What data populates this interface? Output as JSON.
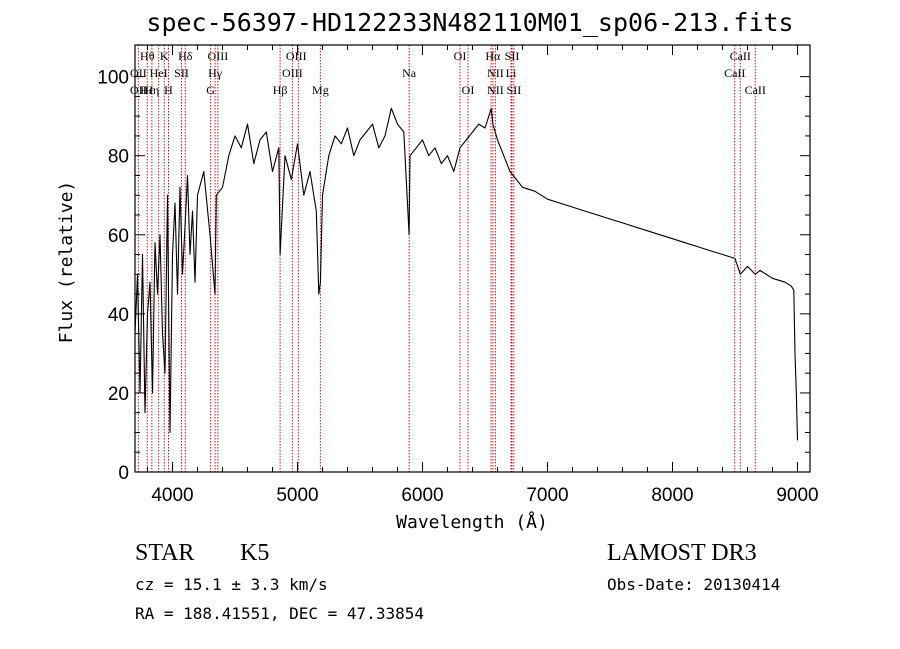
{
  "chart_data": {
    "type": "line",
    "title": "spec-56397-HD122233N482110M01_sp06-213.fits",
    "xlabel": "Wavelength (Å)",
    "ylabel": "Flux (relative)",
    "xlim": [
      3700,
      9100
    ],
    "ylim": [
      0,
      108
    ],
    "xticks": [
      4000,
      5000,
      6000,
      7000,
      8000,
      9000
    ],
    "yticks": [
      0,
      20,
      40,
      60,
      80,
      100
    ],
    "grid": false,
    "series": [
      {
        "x": [
          3700,
          3720,
          3740,
          3760,
          3780,
          3800,
          3820,
          3840,
          3860,
          3880,
          3900,
          3920,
          3940,
          3960,
          3980,
          4000,
          4020,
          4040,
          4060,
          4080,
          4100,
          4120,
          4140,
          4160,
          4180,
          4200,
          4250,
          4300,
          4340,
          4350,
          4400,
          4450,
          4500,
          4550,
          4600,
          4650,
          4700,
          4750,
          4800,
          4850,
          4861,
          4900,
          4950,
          5000,
          5050,
          5100,
          5150,
          5170,
          5183,
          5200,
          5250,
          5300,
          5350,
          5400,
          5450,
          5500,
          5550,
          5600,
          5650,
          5700,
          5750,
          5800,
          5850,
          5893,
          5900,
          5950,
          6000,
          6050,
          6100,
          6150,
          6200,
          6250,
          6300,
          6350,
          6400,
          6450,
          6500,
          6550,
          6563,
          6600,
          6650,
          6700,
          6750,
          6800,
          6900,
          7000,
          7100,
          7200,
          7300,
          7400,
          7500,
          7600,
          7700,
          7800,
          7900,
          8000,
          8100,
          8200,
          8300,
          8400,
          8500,
          8542,
          8600,
          8662,
          8700,
          8800,
          8900,
          8950,
          8970,
          8980,
          8990,
          9000
        ],
        "y": [
          35,
          50,
          20,
          55,
          15,
          40,
          48,
          20,
          58,
          45,
          60,
          35,
          25,
          70,
          10,
          55,
          68,
          45,
          72,
          50,
          62,
          75,
          55,
          66,
          48,
          70,
          76,
          60,
          45,
          70,
          72,
          80,
          85,
          82,
          88,
          78,
          84,
          86,
          76,
          82,
          55,
          80,
          74,
          83,
          70,
          76,
          66,
          45,
          48,
          70,
          80,
          85,
          83,
          87,
          80,
          84,
          86,
          88,
          82,
          85,
          92,
          88,
          86,
          60,
          80,
          82,
          84,
          80,
          82,
          78,
          80,
          76,
          82,
          84,
          86,
          88,
          87,
          92,
          88,
          84,
          80,
          76,
          74,
          72,
          71,
          69,
          68,
          67,
          66,
          65,
          64,
          63,
          62,
          61,
          60,
          59,
          58,
          57,
          56,
          55,
          54,
          50,
          52,
          50,
          51,
          49,
          48,
          47,
          46,
          30,
          20,
          8
        ]
      }
    ],
    "line_labels": [
      {
        "text": "Hθ",
        "x": 3798,
        "row": 1
      },
      {
        "text": "OII",
        "x": 3727,
        "row": 2
      },
      {
        "text": "OII",
        "x": 3727,
        "row": 3
      },
      {
        "text": "Hε",
        "x": 3797,
        "row": 3
      },
      {
        "text": "K",
        "x": 3934,
        "row": 1
      },
      {
        "text": "HeI",
        "x": 3889,
        "row": 2
      },
      {
        "text": "Hη",
        "x": 3835,
        "row": 3
      },
      {
        "text": "Hδ",
        "x": 4102,
        "row": 1
      },
      {
        "text": "SII",
        "x": 4072,
        "row": 2
      },
      {
        "text": "H",
        "x": 3968,
        "row": 3
      },
      {
        "text": "OIII",
        "x": 4363,
        "row": 1
      },
      {
        "text": "Hγ",
        "x": 4341,
        "row": 2
      },
      {
        "text": "G",
        "x": 4305,
        "row": 3
      },
      {
        "text": "Hβ",
        "x": 4861,
        "row": 3
      },
      {
        "text": "OIII",
        "x": 4990,
        "row": 1
      },
      {
        "text": "OIII",
        "x": 4959,
        "row": 2
      },
      {
        "text": "Mg",
        "x": 5183,
        "row": 3
      },
      {
        "text": "Na",
        "x": 5893,
        "row": 2
      },
      {
        "text": "OI",
        "x": 6300,
        "row": 1
      },
      {
        "text": "OI",
        "x": 6364,
        "row": 3
      },
      {
        "text": "Hα",
        "x": 6563,
        "row": 1
      },
      {
        "text": "SII",
        "x": 6716,
        "row": 1
      },
      {
        "text": "NII",
        "x": 6583,
        "row": 2
      },
      {
        "text": "Li",
        "x": 6708,
        "row": 2
      },
      {
        "text": "NII",
        "x": 6583,
        "row": 3
      },
      {
        "text": "SII",
        "x": 6731,
        "row": 3
      },
      {
        "text": "CaII",
        "x": 8542,
        "row": 1
      },
      {
        "text": "CaII",
        "x": 8498,
        "row": 2
      },
      {
        "text": "CaII",
        "x": 8662,
        "row": 3
      }
    ],
    "line_wavelengths": [
      3727,
      3798,
      3835,
      3889,
      3934,
      3968,
      4072,
      4102,
      4305,
      4341,
      4363,
      4861,
      4959,
      5007,
      5183,
      5893,
      6300,
      6364,
      6548,
      6563,
      6583,
      6708,
      6716,
      6731,
      8498,
      8542,
      8662
    ],
    "line_color": "#b22222",
    "annotations": {
      "class_label": "STAR",
      "subclass": "K5",
      "survey": "LAMOST DR3",
      "cz": "cz = 15.1 ± 3.3 km/s",
      "obs_date": "Obs-Date: 20130414",
      "coords": "RA = 188.41551, DEC =  47.33854"
    }
  }
}
